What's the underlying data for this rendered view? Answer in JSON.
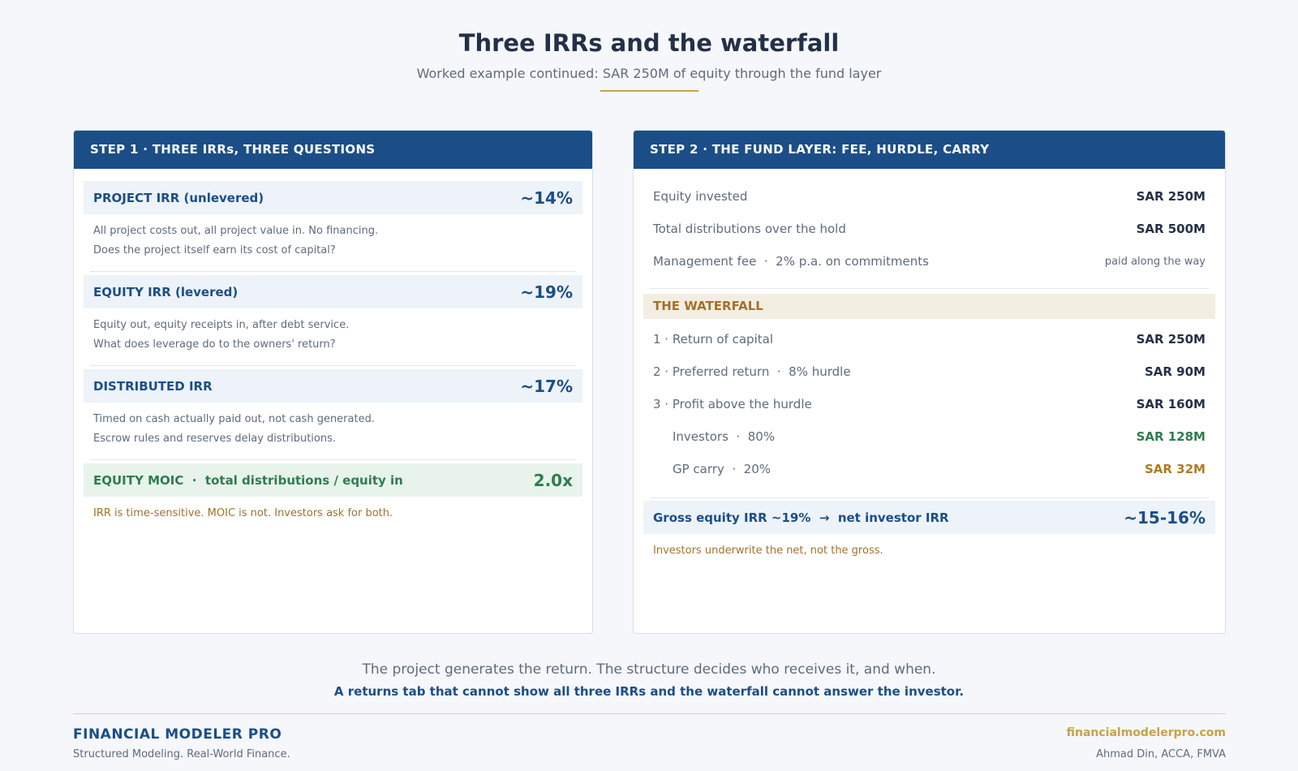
{
  "header": {
    "title": "Three IRRs and the waterfall",
    "subtitle": "Worked example continued: SAR 250M of equity through the fund layer"
  },
  "left_card": {
    "heading": "STEP 1 · THREE IRRs, THREE QUESTIONS",
    "items": [
      {
        "label": "PROJECT IRR (unlevered)",
        "value": "~14%",
        "line1": "All project costs out, all project value in. No financing.",
        "line2": "Does the project itself earn its cost of capital?"
      },
      {
        "label": "EQUITY IRR (levered)",
        "value": "~19%",
        "line1": "Equity out, equity receipts in, after debt service.",
        "line2": "What does leverage do to the owners' return?"
      },
      {
        "label": "DISTRIBUTED IRR",
        "value": "~17%",
        "line1": "Timed on cash actually paid out, not cash generated.",
        "line2": "Escrow rules and reserves delay distributions."
      }
    ],
    "moic": {
      "label": "EQUITY MOIC  ·  total distributions / equity in",
      "value": "2.0x"
    },
    "note": "IRR is time-sensitive. MOIC is not. Investors ask for both."
  },
  "right_card": {
    "heading": "STEP 2 · THE FUND LAYER: FEE, HURDLE, CARRY",
    "rows": [
      {
        "label": "Equity invested",
        "value": "SAR 250M"
      },
      {
        "label": "Total distributions over the hold",
        "value": "SAR 500M"
      },
      {
        "label": "Management fee  ·  2% p.a. on commitments",
        "value": "paid along the way"
      }
    ],
    "waterfall_heading": "THE WATERFALL",
    "waterfall": [
      {
        "label": "1 · Return of capital",
        "value": "SAR 250M"
      },
      {
        "label": "2 · Preferred return  ·  8% hurdle",
        "value": "SAR 90M"
      },
      {
        "label": "3 · Profit above the hurdle",
        "value": "SAR 160M"
      },
      {
        "label": "Investors  ·  80%",
        "value": "SAR 128M"
      },
      {
        "label": "GP carry  ·  20%",
        "value": "SAR 32M"
      }
    ],
    "net": {
      "label": "Gross equity IRR ~19%  →  net investor IRR",
      "value": "~15-16%"
    },
    "note": "Investors underwrite the net, not the gross."
  },
  "closing": {
    "line1": "The project generates the return. The structure decides who receives it, and when.",
    "line2": "A returns tab that cannot show all three IRRs and the waterfall cannot answer the investor."
  },
  "footer": {
    "brand": "FINANCIAL MODELER PRO",
    "tagline": "Structured Modeling. Real-World Finance.",
    "site": "financialmodelerpro.com",
    "author": "Ahmad Din, ACCA, FMVA"
  },
  "colors": {
    "navy": "#1b4e87",
    "gold": "#c9a14a",
    "green": "#2f7d4f",
    "background": "#f5f7fa"
  }
}
